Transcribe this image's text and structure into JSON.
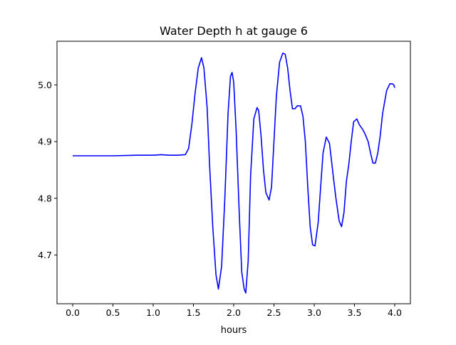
{
  "chart_data": {
    "type": "line",
    "title": "Water Depth h at gauge 6",
    "xlabel": "hours",
    "ylabel": "",
    "xlim": [
      -0.195,
      4.195
    ],
    "ylim": [
      4.614,
      5.077
    ],
    "xticks": [
      0.0,
      0.5,
      1.0,
      1.5,
      2.0,
      2.5,
      3.0,
      3.5,
      4.0
    ],
    "xtick_labels": [
      "0.0",
      "0.5",
      "1.0",
      "1.5",
      "2.0",
      "2.5",
      "3.0",
      "3.5",
      "4.0"
    ],
    "yticks": [
      4.7,
      4.8,
      4.9,
      5.0
    ],
    "ytick_labels": [
      "4.7",
      "4.8",
      "4.9",
      "5.0"
    ],
    "grid": false,
    "legend": "none",
    "series": [
      {
        "color": "#0000ff",
        "x": [
          0.0,
          0.2,
          0.5,
          0.8,
          1.0,
          1.1,
          1.2,
          1.3,
          1.4,
          1.44,
          1.48,
          1.52,
          1.56,
          1.6,
          1.63,
          1.67,
          1.7,
          1.74,
          1.78,
          1.81,
          1.85,
          1.89,
          1.93,
          1.96,
          1.98,
          2.0,
          2.03,
          2.07,
          2.1,
          2.13,
          2.15,
          2.18,
          2.21,
          2.25,
          2.29,
          2.31,
          2.34,
          2.37,
          2.4,
          2.44,
          2.47,
          2.5,
          2.53,
          2.57,
          2.61,
          2.64,
          2.67,
          2.7,
          2.73,
          2.76,
          2.79,
          2.83,
          2.86,
          2.89,
          2.92,
          2.95,
          2.98,
          3.01,
          3.05,
          3.08,
          3.11,
          3.15,
          3.19,
          3.22,
          3.24,
          3.27,
          3.31,
          3.34,
          3.37,
          3.4,
          3.43,
          3.46,
          3.49,
          3.53,
          3.56,
          3.6,
          3.63,
          3.67,
          3.7,
          3.73,
          3.76,
          3.79,
          3.82,
          3.85,
          3.9,
          3.94,
          3.97,
          3.99,
          4.0
        ],
        "y": [
          4.875,
          4.875,
          4.875,
          4.876,
          4.876,
          4.877,
          4.876,
          4.876,
          4.877,
          4.888,
          4.93,
          4.985,
          5.03,
          5.048,
          5.03,
          4.96,
          4.86,
          4.75,
          4.665,
          4.64,
          4.68,
          4.8,
          4.95,
          5.015,
          5.022,
          5.005,
          4.92,
          4.77,
          4.67,
          4.64,
          4.633,
          4.69,
          4.84,
          4.94,
          4.96,
          4.955,
          4.91,
          4.85,
          4.81,
          4.797,
          4.82,
          4.9,
          4.98,
          5.04,
          5.056,
          5.054,
          5.03,
          4.99,
          4.958,
          4.958,
          4.963,
          4.963,
          4.945,
          4.9,
          4.82,
          4.75,
          4.718,
          4.716,
          4.758,
          4.82,
          4.88,
          4.908,
          4.897,
          4.86,
          4.835,
          4.8,
          4.76,
          4.75,
          4.775,
          4.83,
          4.86,
          4.9,
          4.935,
          4.94,
          4.93,
          4.922,
          4.914,
          4.9,
          4.88,
          4.862,
          4.862,
          4.88,
          4.91,
          4.95,
          4.99,
          5.002,
          5.002,
          5.0,
          4.995
        ]
      }
    ]
  }
}
